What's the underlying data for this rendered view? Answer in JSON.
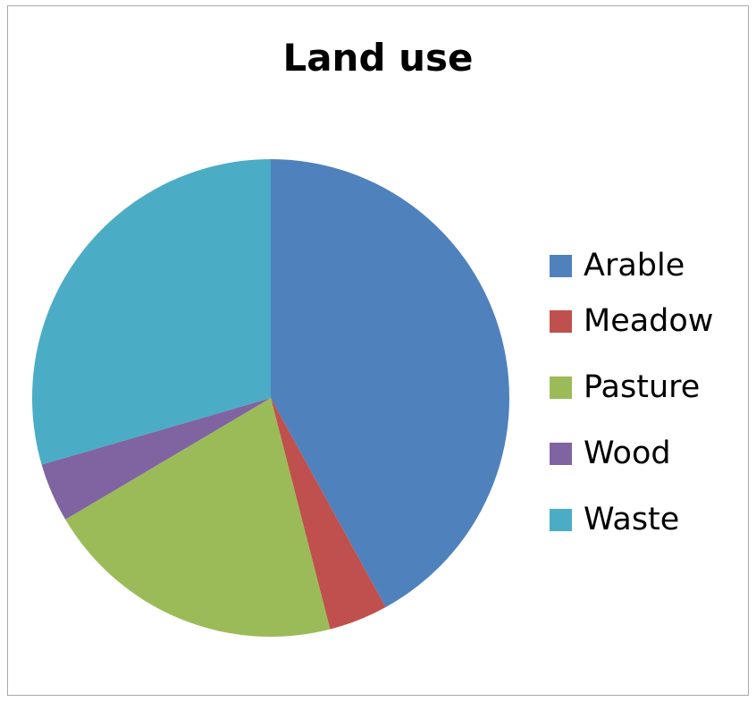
{
  "chart_data": {
    "type": "pie",
    "title": "Land use",
    "categories": [
      "Arable",
      "Meadow",
      "Pasture",
      "Wood",
      "Waste"
    ],
    "values": [
      42,
      4,
      20.5,
      4,
      29.5
    ],
    "colors": [
      "#4F81BD",
      "#C0504D",
      "#9BBB59",
      "#8064A2",
      "#4BACC6"
    ],
    "start_angle_deg": 0,
    "direction": "clockwise",
    "legend_position": "right"
  }
}
